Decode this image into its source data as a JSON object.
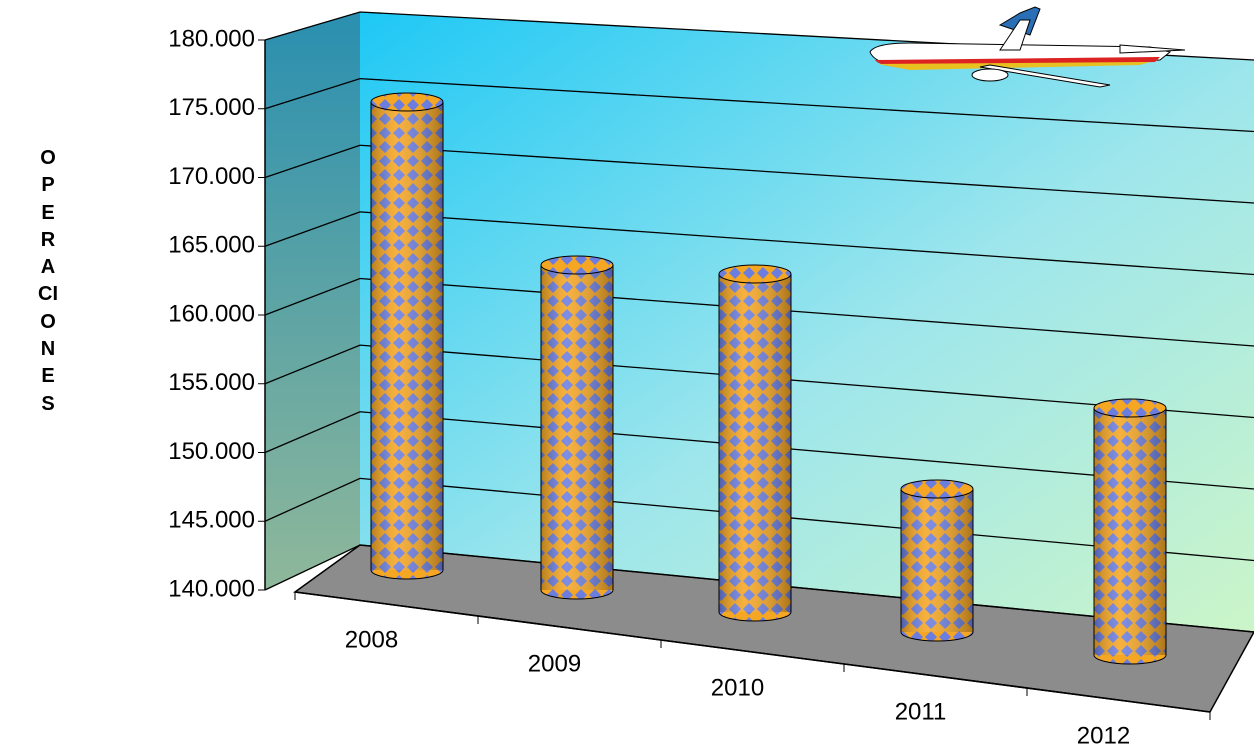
{
  "chart_data": {
    "type": "bar",
    "y_label": "OPERACIONES",
    "categories": [
      "2008",
      "2009",
      "2010",
      "2011",
      "2012"
    ],
    "values": [
      176000,
      165000,
      166000,
      151000,
      159000
    ],
    "ylim": [
      140000,
      180000
    ],
    "yticks": [
      {
        "value": 140000,
        "label": "140.000"
      },
      {
        "value": 145000,
        "label": "145.000"
      },
      {
        "value": 150000,
        "label": "150.000"
      },
      {
        "value": 155000,
        "label": "155.000"
      },
      {
        "value": 160000,
        "label": "160.000"
      },
      {
        "value": 165000,
        "label": "165.000"
      },
      {
        "value": 170000,
        "label": "170.000"
      },
      {
        "value": 175000,
        "label": "175.000"
      },
      {
        "value": 180000,
        "label": "180.000"
      }
    ],
    "grid": true
  }
}
